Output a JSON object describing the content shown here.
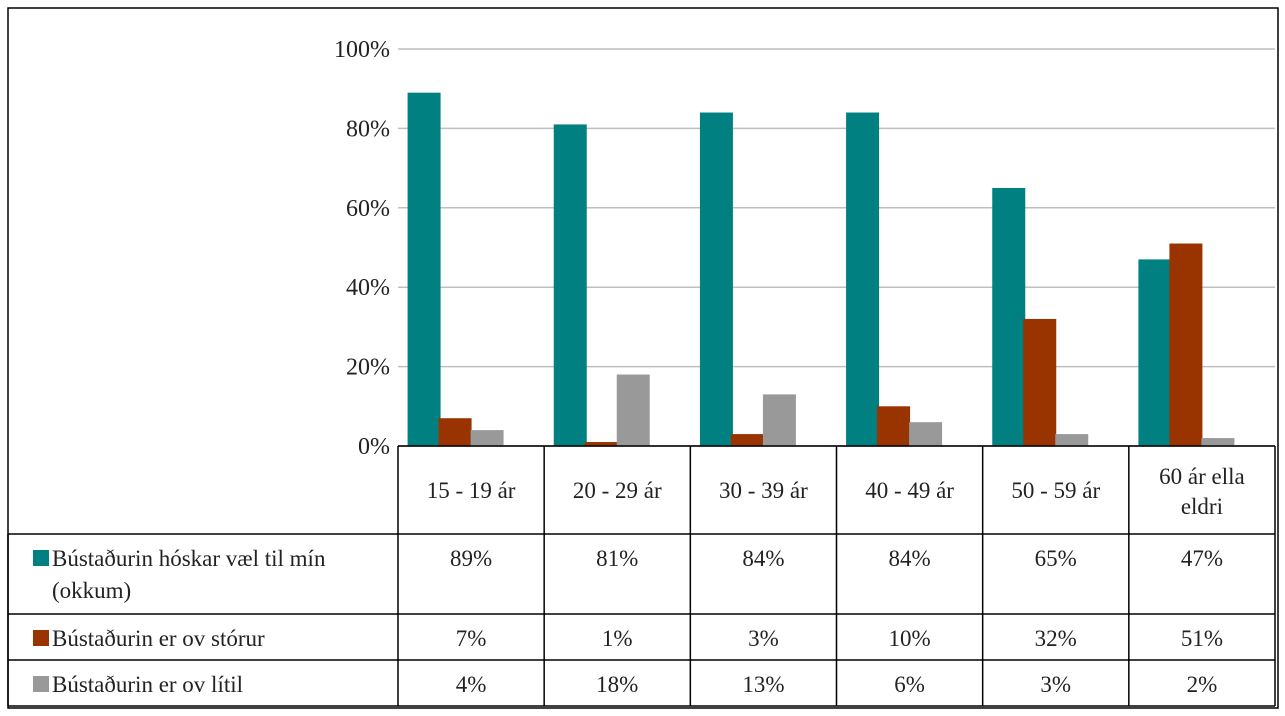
{
  "chart_data": {
    "type": "bar",
    "categories": [
      "15 - 19 ár",
      "20 - 29 ár",
      "30 - 39 ár",
      "40 - 49 ár",
      "50 - 59 ár",
      "60 ár ella eldri"
    ],
    "category_lines": [
      [
        "15 - 19 ár"
      ],
      [
        "20 - 29 ár"
      ],
      [
        "30 - 39 ár"
      ],
      [
        "40 - 49 ár"
      ],
      [
        "50 - 59 ár"
      ],
      [
        "60 ár ella",
        "eldri"
      ]
    ],
    "ylim": [
      0,
      100
    ],
    "yticks": [
      0,
      20,
      40,
      60,
      80,
      100
    ],
    "ytick_labels": [
      "0%",
      "20%",
      "40%",
      "60%",
      "80%",
      "100%"
    ],
    "grid": true,
    "legend": "data-table",
    "series": [
      {
        "name": "Bústaðurin hóskar væl til mín (okkum)",
        "name_lines": [
          "Bústaðurin hóskar væl til mín",
          "(okkum)"
        ],
        "color": "#008080",
        "values": [
          89,
          81,
          84,
          84,
          65,
          47
        ],
        "labels": [
          "89%",
          "81%",
          "84%",
          "84%",
          "65%",
          "47%"
        ]
      },
      {
        "name": "Bústaðurin er ov stórur",
        "name_lines": [
          "Bústaðurin er ov stórur"
        ],
        "color": "#993300",
        "values": [
          7,
          1,
          3,
          10,
          32,
          51
        ],
        "labels": [
          "7%",
          "1%",
          "3%",
          "10%",
          "32%",
          "51%"
        ]
      },
      {
        "name": "Bústaðurin er ov lítil",
        "name_lines": [
          "Bústaðurin er ov lítil"
        ],
        "color": "#999999",
        "values": [
          4,
          18,
          13,
          6,
          3,
          2
        ],
        "labels": [
          "4%",
          "18%",
          "13%",
          "6%",
          "3%",
          "2%"
        ]
      }
    ]
  }
}
